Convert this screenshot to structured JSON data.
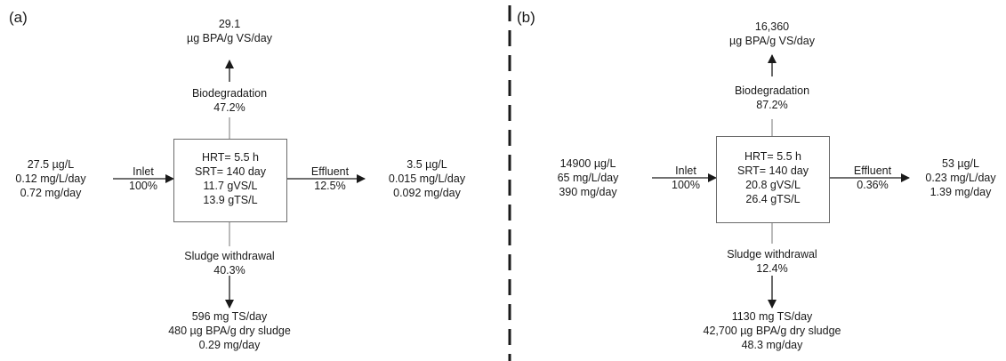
{
  "panel_a": {
    "label": "(a)",
    "bio_top": [
      "29.1",
      "µg BPA/g VS/day"
    ],
    "bio_label": [
      "Biodegradation",
      "47.2%"
    ],
    "inlet_values": [
      "27.5 µg/L",
      "0.12 mg/L/day",
      "0.72 mg/day"
    ],
    "inlet_label": [
      "Inlet",
      "100%"
    ],
    "box": [
      "HRT= 5.5 h",
      "SRT= 140 day",
      "11.7 gVS/L",
      "13.9 gTS/L"
    ],
    "effluent_label": [
      "Effluent",
      "12.5%"
    ],
    "effluent_values": [
      "3.5 µg/L",
      "0.015 mg/L/day",
      "0.092 mg/day"
    ],
    "sludge_label": [
      "Sludge withdrawal",
      "40.3%"
    ],
    "sludge_values": [
      "596 mg TS/day",
      "480 µg BPA/g dry sludge",
      "0.29 mg/day"
    ]
  },
  "panel_b": {
    "label": "(b)",
    "bio_top": [
      "16,360",
      "µg BPA/g VS/day"
    ],
    "bio_label": [
      "Biodegradation",
      "87.2%"
    ],
    "inlet_values": [
      "14900 µg/L",
      "65 mg/L/day",
      "390 mg/day"
    ],
    "inlet_label": [
      "Inlet",
      "100%"
    ],
    "box": [
      "HRT= 5.5 h",
      "SRT= 140 day",
      "20.8 gVS/L",
      "26.4 gTS/L"
    ],
    "effluent_label": [
      "Effluent",
      "0.36%"
    ],
    "effluent_values": [
      "53 µg/L",
      "0.23 mg/L/day",
      "1.39 mg/day"
    ],
    "sludge_label": [
      "Sludge withdrawal",
      "12.4%"
    ],
    "sludge_values": [
      "1130 mg TS/day",
      "42,700 µg BPA/g dry sludge",
      "48.3 mg/day"
    ]
  }
}
